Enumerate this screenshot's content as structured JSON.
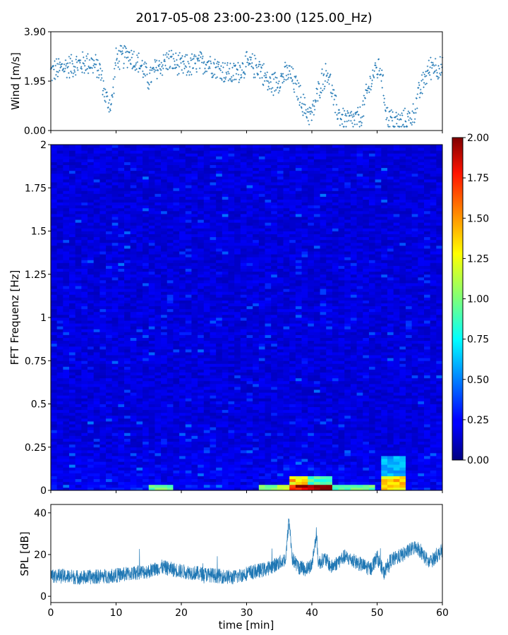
{
  "figure": {
    "title": "2017-05-08 23:00-23:00 (125.00_Hz)"
  },
  "colors": {
    "series": "#1f77b4",
    "colormap": "jet",
    "axis": "#000000",
    "background": "#ffffff"
  },
  "chart_data": [
    {
      "type": "scatter",
      "ylabel": "Wind [m/s]",
      "xlabel": "",
      "xlim": [
        0,
        60
      ],
      "ylim": [
        0,
        3.9
      ],
      "yticks": [
        "0.00",
        "1.95",
        "3.90"
      ],
      "xticks_labeled": false,
      "marker": "+",
      "trend": {
        "x": [
          0,
          2,
          4,
          6,
          7.5,
          8.5,
          9.3,
          10,
          12,
          14,
          15,
          16,
          18,
          20,
          22,
          24,
          26,
          28,
          30,
          32,
          33.5,
          35,
          36.5,
          38,
          39,
          40,
          41.5,
          42.5,
          43.5,
          44.5,
          45.5,
          46.5,
          47.5,
          48.5,
          49.5,
          50.5,
          51.5,
          52.5,
          53.5,
          54.5,
          55.5,
          56.5,
          57.5,
          58.5,
          60
        ],
        "y": [
          2.3,
          2.5,
          2.6,
          2.7,
          2.4,
          1.2,
          1.0,
          2.8,
          3.0,
          2.5,
          2.0,
          2.4,
          2.8,
          2.5,
          2.6,
          2.7,
          2.4,
          2.2,
          2.6,
          2.5,
          1.8,
          2.0,
          2.3,
          1.5,
          0.8,
          0.6,
          2.0,
          2.3,
          1.0,
          0.5,
          0.4,
          0.4,
          0.5,
          1.5,
          2.3,
          2.5,
          0.6,
          0.4,
          0.3,
          0.4,
          0.6,
          1.5,
          2.2,
          2.6,
          2.4
        ]
      },
      "spread": 0.55
    },
    {
      "type": "heatmap",
      "ylabel": "FFT Frequenz [Hz]",
      "xlabel": "",
      "xlim": [
        0,
        60
      ],
      "ylim": [
        0,
        2
      ],
      "yticks": [
        "0",
        "0.25",
        "0.5",
        "0.75",
        "1",
        "1.25",
        "1.5",
        "1.75",
        "2"
      ],
      "xticks_labeled": false,
      "colorbar": {
        "range": [
          0,
          2
        ],
        "ticks": [
          "0.00",
          "0.25",
          "0.50",
          "0.75",
          "1.00",
          "1.25",
          "1.50",
          "1.75",
          "2.00"
        ]
      },
      "time_bins": 64,
      "freq_bins": 120,
      "hotspots": [
        {
          "t0": 36.5,
          "t1": 39.5,
          "f0": 0.0,
          "f1": 0.09,
          "value": 1.3
        },
        {
          "t0": 36.5,
          "t1": 39.5,
          "f0": 0.0,
          "f1": 0.03,
          "value": 1.9
        },
        {
          "t0": 39.5,
          "t1": 42.8,
          "f0": 0.0,
          "f1": 0.04,
          "value": 2.0
        },
        {
          "t0": 39.5,
          "t1": 42.8,
          "f0": 0.04,
          "f1": 0.08,
          "value": 0.9
        },
        {
          "t0": 50.5,
          "t1": 54.5,
          "f0": 0.0,
          "f1": 0.09,
          "value": 1.3
        },
        {
          "t0": 50.5,
          "t1": 54.5,
          "f0": 0.09,
          "f1": 0.2,
          "value": 0.6
        },
        {
          "t0": 15.0,
          "t1": 19.0,
          "f0": 0.0,
          "f1": 0.04,
          "value": 1.0
        },
        {
          "t0": 32.0,
          "t1": 36.5,
          "f0": 0.0,
          "f1": 0.03,
          "value": 1.1
        },
        {
          "t0": 43.0,
          "t1": 50.0,
          "f0": 0.0,
          "f1": 0.03,
          "value": 0.9
        }
      ]
    },
    {
      "type": "line",
      "ylabel": "SPL [dB]",
      "xlabel": "time [min]",
      "xlim": [
        0,
        60
      ],
      "ylim": [
        -3,
        44
      ],
      "yticks": [
        0,
        20,
        40
      ],
      "xticks": [
        0,
        10,
        20,
        30,
        40,
        50,
        60
      ],
      "trend": {
        "x": [
          0,
          5,
          10,
          15,
          17,
          20,
          25,
          28,
          30,
          33,
          35,
          36,
          36.5,
          37,
          38,
          39,
          40,
          40.7,
          41,
          42,
          43,
          45,
          47,
          49,
          50,
          51,
          52,
          54,
          56,
          58,
          60
        ],
        "y": [
          10,
          9,
          10,
          12,
          14,
          12,
          10,
          9,
          11,
          13,
          16,
          18,
          37,
          18,
          14,
          13,
          15,
          30,
          16,
          18,
          14,
          19,
          16,
          13,
          19,
          11,
          17,
          20,
          24,
          16,
          22
        ]
      },
      "band": 3.5
    }
  ]
}
